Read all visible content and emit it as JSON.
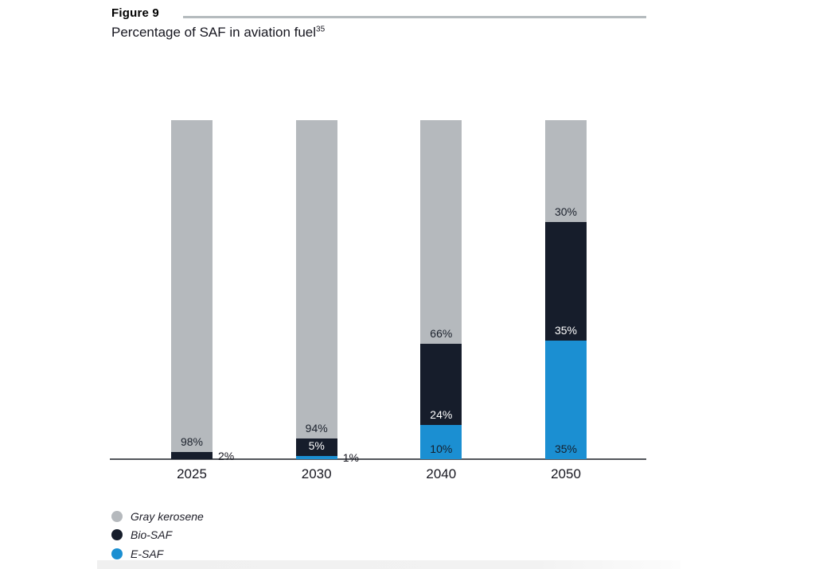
{
  "figure": {
    "label": "Figure 9",
    "title": "Percentage of SAF in aviation fuel",
    "footnote_marker": "35"
  },
  "chart_data": {
    "type": "bar",
    "stacked": true,
    "title": "Percentage of SAF in aviation fuel",
    "unit": "%",
    "ylim": [
      0,
      100
    ],
    "grid": false,
    "categories": [
      "2025",
      "2030",
      "2040",
      "2050"
    ],
    "series": [
      {
        "name": "E-SAF",
        "color": "#1b8fd2",
        "label_color": "#15202d",
        "values": [
          0,
          1,
          10,
          35
        ]
      },
      {
        "name": "Bio-SAF",
        "color": "#161d2b",
        "label_color": "#ffffff",
        "values": [
          2,
          5,
          24,
          35
        ]
      },
      {
        "name": "Gray kerosene",
        "color": "#b5b9bd",
        "label_color": "#1b212c",
        "values": [
          98,
          94,
          66,
          30
        ]
      }
    ],
    "value_labels": {
      "format": "{v}%",
      "outside_right": [
        {
          "category": "2025",
          "series": "Bio-SAF",
          "text": "2%"
        },
        {
          "category": "2030",
          "series": "E-SAF",
          "text": "1%"
        }
      ]
    },
    "legend": {
      "position": "bottom-left",
      "items": [
        {
          "label": "Gray kerosene",
          "color": "#b5b9bd"
        },
        {
          "label": "Bio-SAF",
          "color": "#161d2b"
        },
        {
          "label": "E-SAF",
          "color": "#1b8fd2"
        }
      ]
    },
    "axis_color": "#53565b"
  }
}
